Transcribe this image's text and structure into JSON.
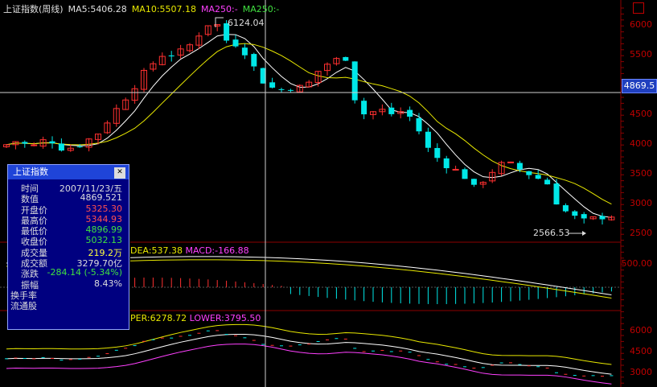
{
  "header": {
    "index_name": "上证指数(周线)",
    "ma5": "MA5:5406.28",
    "ma10": "MA10:5507.18",
    "ma250a": "MA250:-",
    "ma250b": "MA250:-"
  },
  "macd_header": {
    "dea": "DEA:537.38",
    "macd": "MACD:-166.88"
  },
  "boll_header": {
    "upper": "PER:6278.72",
    "lower": "LOWER:3795.50"
  },
  "main_axis": [
    "6000",
    "5500",
    "5000",
    "4500",
    "4000",
    "3500",
    "3000",
    "2500"
  ],
  "macd_axis": [
    "500.00"
  ],
  "boll_axis": [
    "6000",
    "4500",
    "3000"
  ],
  "current_price": "4869.5",
  "annotations": {
    "high": "6124.04",
    "low": "2566.53"
  },
  "popup": {
    "title": "上证指数",
    "rows": [
      {
        "label": "时间",
        "value": "2007/11/23/五",
        "color": "#dddddd"
      },
      {
        "label": "数值",
        "value": "4869.521",
        "color": "#dddddd"
      },
      {
        "label": "开盘价",
        "value": "5325.30",
        "color": "#ff5050"
      },
      {
        "label": "最高价",
        "value": "5344.93",
        "color": "#ff5050"
      },
      {
        "label": "最低价",
        "value": "4896.99",
        "color": "#40e040"
      },
      {
        "label": "收盘价",
        "value": "5032.13",
        "color": "#40e040"
      },
      {
        "label": "成交量",
        "value": "219.2万",
        "color": "#ffff40"
      },
      {
        "label": "成交额",
        "value": "3279.70亿",
        "color": "#dddddd"
      },
      {
        "label": "涨跌",
        "value": "-284.14 (-5.34%)",
        "color": "#40e040"
      },
      {
        "label": "振幅",
        "value": "8.43%",
        "color": "#dddddd"
      },
      {
        "label": "换手率",
        "value": "",
        "color": "#dddddd"
      },
      {
        "label": "流通股",
        "value": "",
        "color": "#dddddd"
      }
    ]
  },
  "colors": {
    "up": "#ff3030",
    "down": "#00e8e8",
    "ma5": "#ffffff",
    "ma10": "#e8e800",
    "ma250": "#ff40ff",
    "grid": "#8b0000",
    "boll_mid": "#ffffff",
    "boll_up": "#e8e800",
    "boll_low": "#ff40ff"
  }
}
